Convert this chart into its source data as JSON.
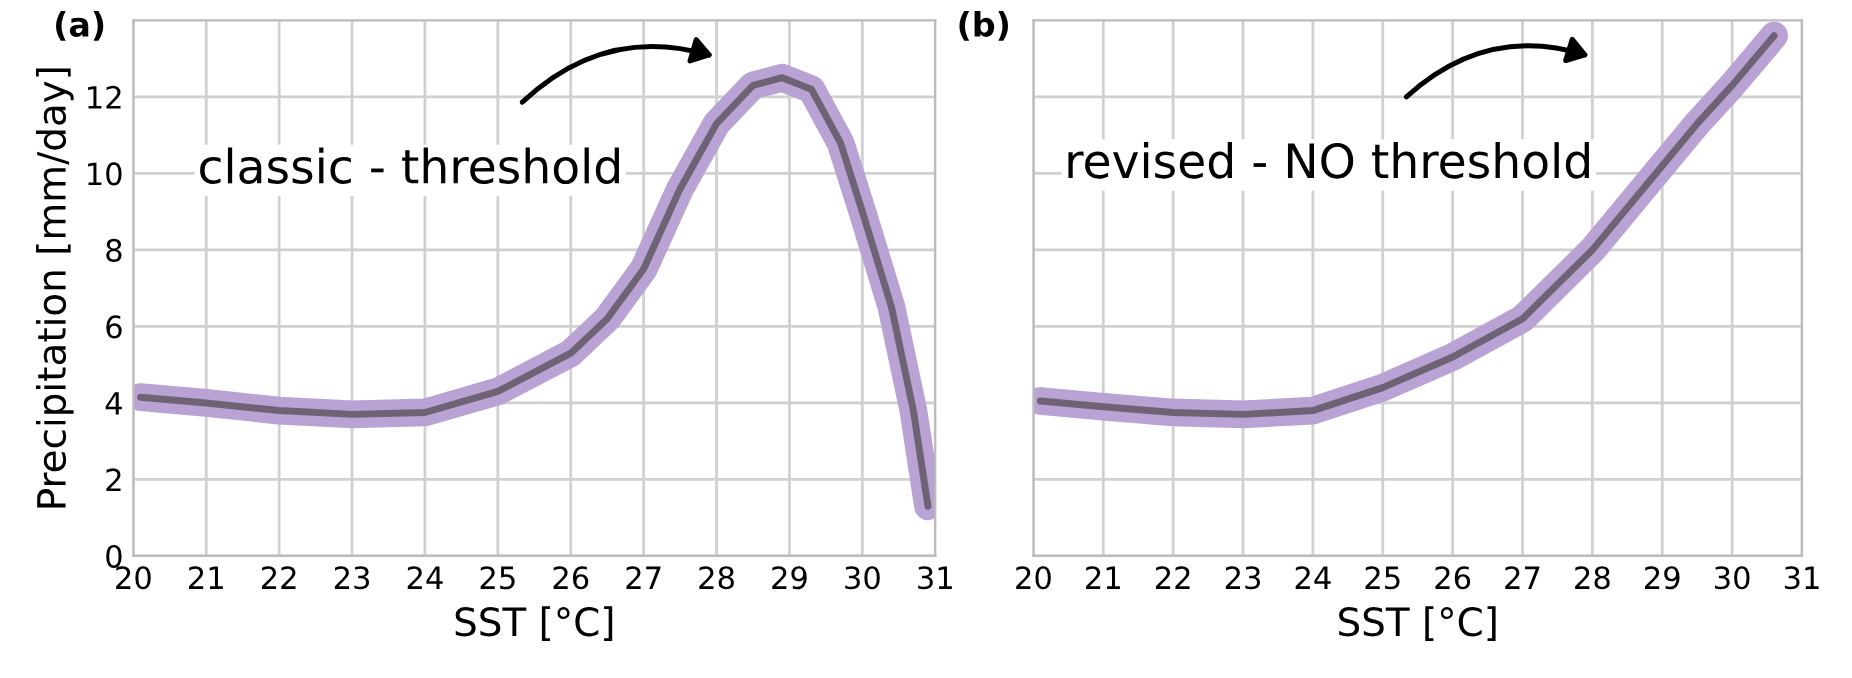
{
  "chart_data": [
    {
      "type": "line",
      "title": "(a)",
      "xlabel": "SST [°C]",
      "ylabel": "Precipitation [mm/day]",
      "annotations": [
        "classic - threshold"
      ],
      "series": [
        {
          "color": "#6e6275",
          "x": [
            20.1,
            21,
            22,
            23,
            24,
            25,
            26,
            26.5,
            27,
            27.5,
            28,
            28.5,
            28.9,
            29.3,
            29.7,
            30,
            30.4,
            30.7,
            30.9
          ],
          "values": [
            4.15,
            4.0,
            3.8,
            3.7,
            3.75,
            4.3,
            5.3,
            6.2,
            7.5,
            9.6,
            11.3,
            12.3,
            12.5,
            12.2,
            10.8,
            9.0,
            6.5,
            3.8,
            1.3
          ]
        }
      ],
      "xlim": [
        20,
        31
      ],
      "ylim": [
        0,
        14
      ],
      "xticks": [
        20,
        21,
        22,
        23,
        24,
        25,
        26,
        27,
        28,
        29,
        30,
        31
      ],
      "yticks": [
        0,
        2,
        4,
        6,
        8,
        10,
        12
      ],
      "grid": true
    },
    {
      "type": "line",
      "title": "(b)",
      "xlabel": "SST [°C]",
      "annotations": [
        "revised - NO threshold"
      ],
      "series": [
        {
          "color": "#6e6275",
          "x": [
            20.1,
            21,
            22,
            23,
            24,
            25,
            26,
            27,
            28,
            29,
            29.5,
            30,
            30.6
          ],
          "values": [
            4.05,
            3.9,
            3.75,
            3.7,
            3.8,
            4.4,
            5.2,
            6.2,
            8.0,
            10.2,
            11.3,
            12.3,
            13.6
          ]
        }
      ],
      "xlim": [
        20,
        31
      ],
      "ylim": [
        0,
        14
      ],
      "xticks": [
        20,
        21,
        22,
        23,
        24,
        25,
        26,
        27,
        28,
        29,
        30,
        31
      ],
      "yticks": [
        0,
        2,
        4,
        6,
        8,
        10,
        12
      ],
      "grid": true,
      "tick_labels": "x"
    }
  ]
}
